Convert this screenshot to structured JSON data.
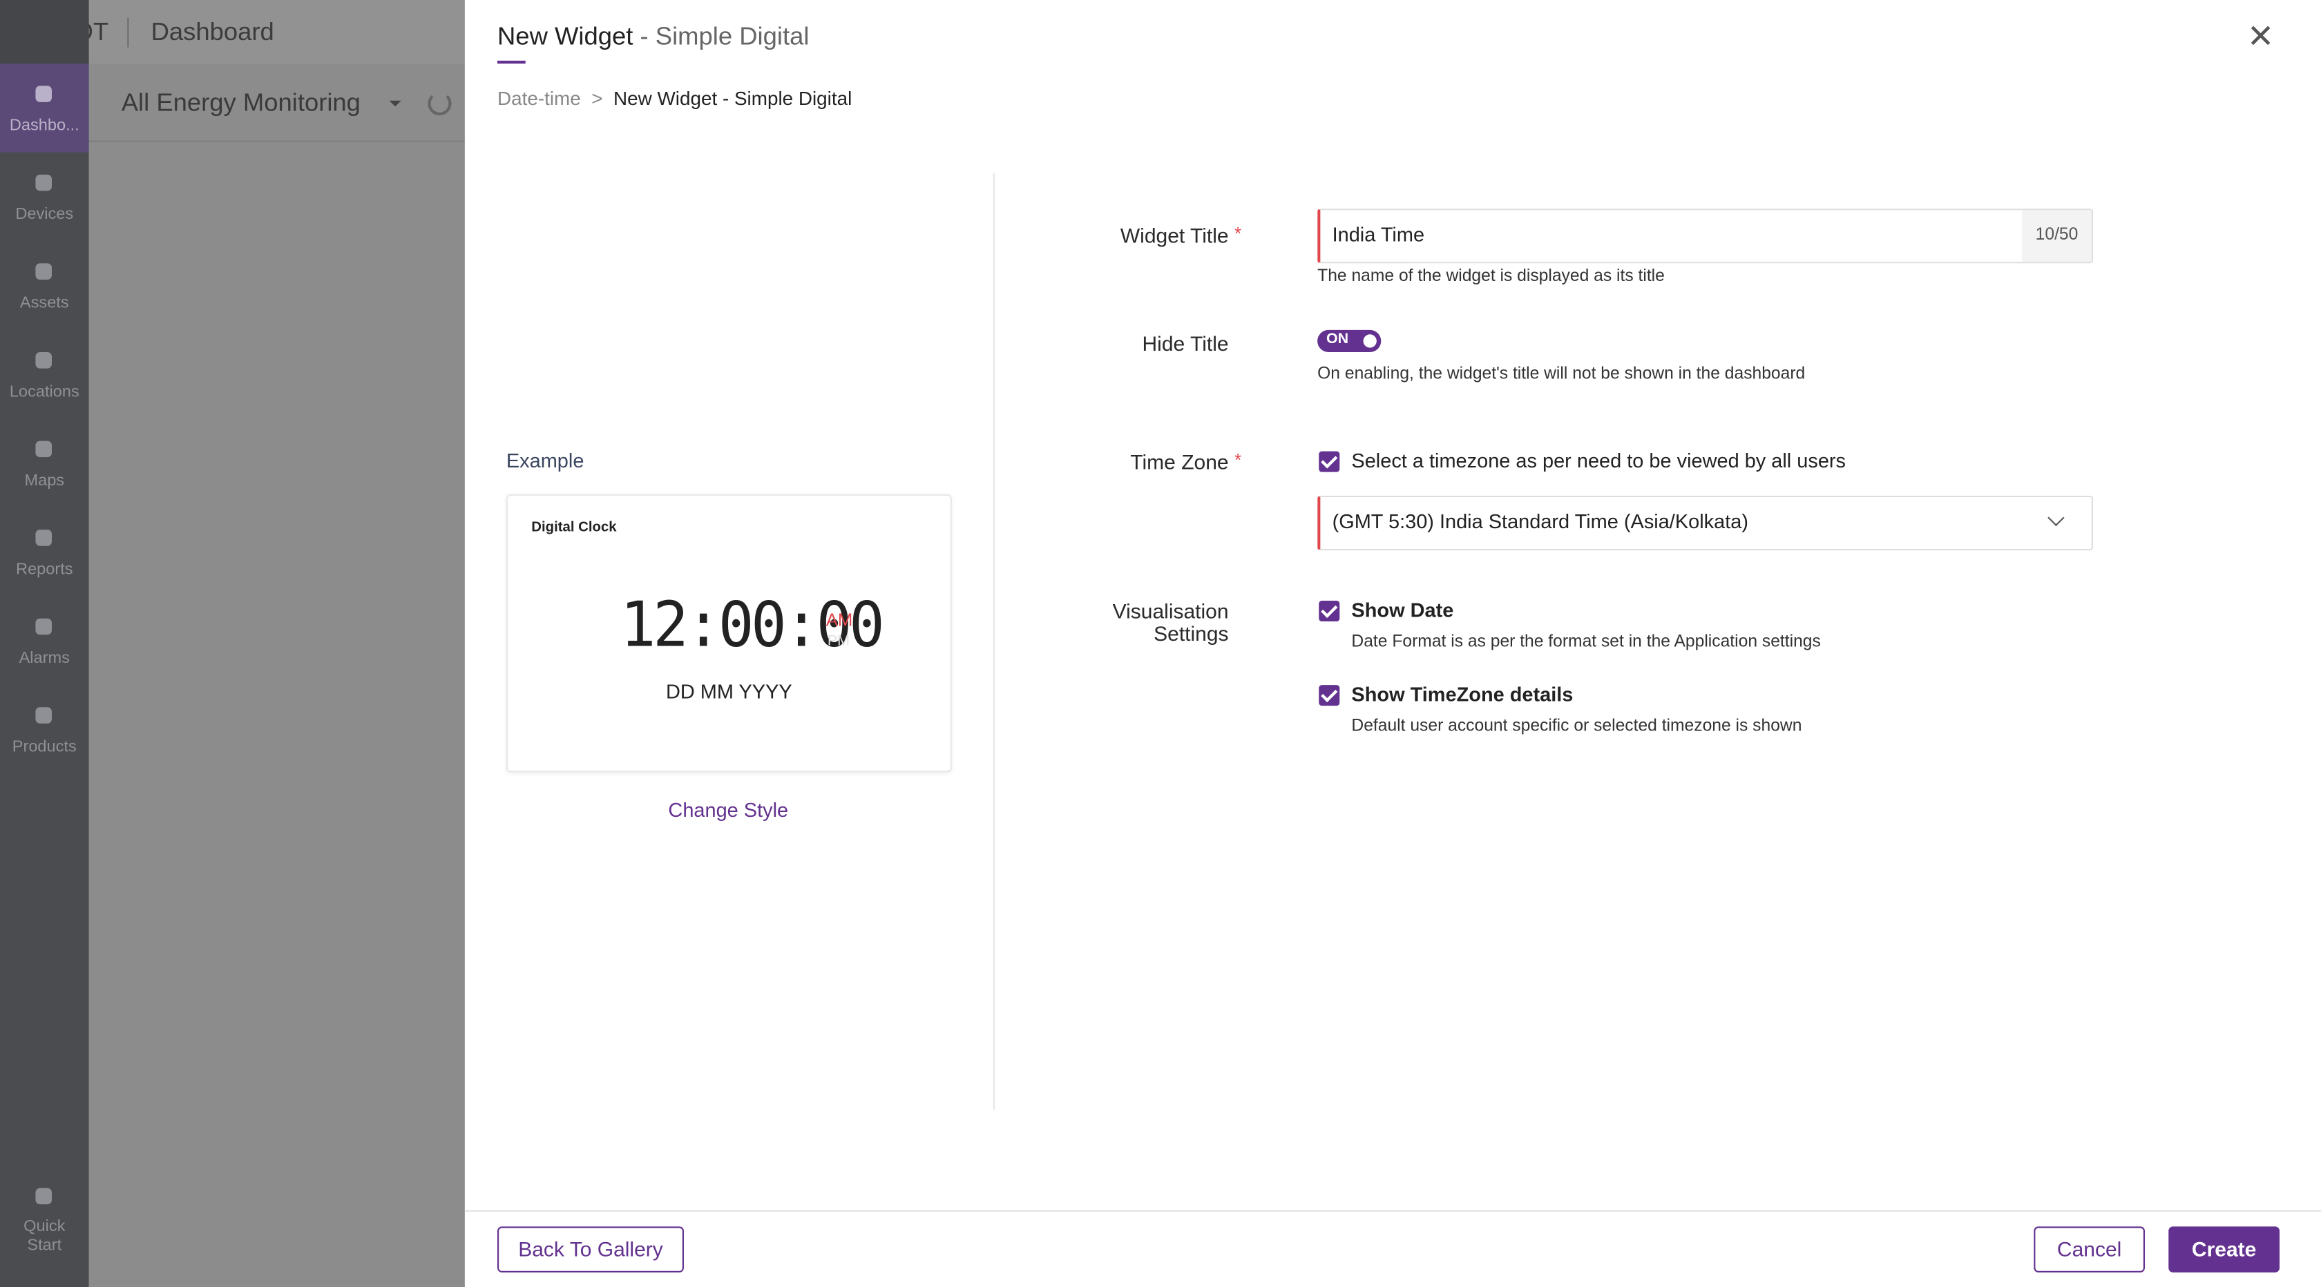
{
  "app": {
    "name": "IOT",
    "section": "Dashboard",
    "dashboard": "All Energy Monitoring"
  },
  "nav": [
    "Dashbo...",
    "Devices",
    "Assets",
    "Locations",
    "Maps",
    "Reports",
    "Alarms",
    "Products"
  ],
  "quick_start": [
    "Quick",
    "Start"
  ],
  "modal": {
    "title": "New Widget",
    "subtitle": "- Simple Digital",
    "breadcrumb": {
      "parent": "Date-time",
      "separator": ">",
      "current": "New Widget - Simple Digital"
    },
    "example": {
      "label": "Example",
      "card_title": "Digital Clock",
      "time": "12:00:00",
      "am": "AM",
      "pm": "PM",
      "date": "DD MM YYYY",
      "change_style": "Change Style"
    },
    "form": {
      "required": "*",
      "widget_title": {
        "label": "Widget Title",
        "value": "India Time",
        "counter": "10/50",
        "help": "The name of the widget is displayed as its title"
      },
      "hide_title": {
        "label": "Hide Title",
        "toggle": "ON",
        "help": "On enabling, the widget's title will not be shown in the dashboard"
      },
      "time_zone": {
        "label": "Time Zone",
        "checkbox": "Select a timezone as per need to be viewed by all users",
        "select": "(GMT 5:30) India Standard Time (Asia/Kolkata)"
      },
      "visualisation": {
        "label": [
          "Visualisation",
          "Settings"
        ],
        "options": [
          {
            "label": "Show Date",
            "help": "Date Format is as per the format set in the Application settings"
          },
          {
            "label": "Show TimeZone details",
            "help": "Default user account specific or selected timezone is shown"
          }
        ]
      }
    },
    "footer": {
      "back": "Back To Gallery",
      "cancel": "Cancel",
      "create": "Create"
    }
  }
}
